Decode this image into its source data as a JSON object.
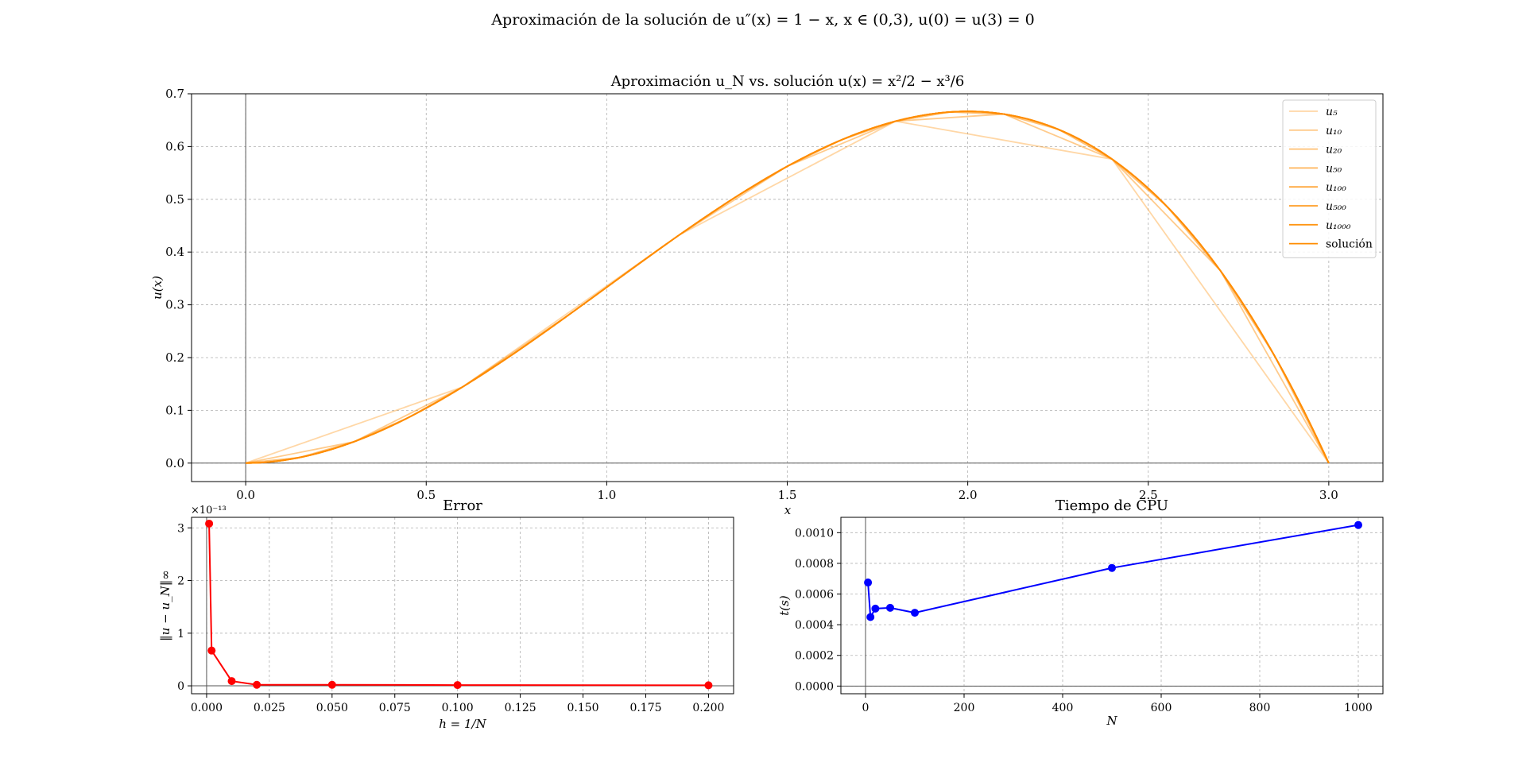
{
  "figure": {
    "suptitle": "Aproximación de la solución de u″(x) = 1 − x, x ∈ (0,3), u(0) = u(3) = 0"
  },
  "chart_data": [
    {
      "type": "line",
      "title": "Aproximación u_N vs. solución u(x) = x²/2 − x³/6",
      "xlabel": "x",
      "ylabel": "u(x)",
      "xlim": [
        -0.15,
        3.15
      ],
      "ylim": [
        -0.035,
        0.7
      ],
      "xticks": [
        "0.0",
        "0.5",
        "1.0",
        "1.5",
        "2.0",
        "2.5",
        "3.0"
      ],
      "yticks": [
        "0.0",
        "0.1",
        "0.2",
        "0.3",
        "0.4",
        "0.5",
        "0.6",
        "0.7"
      ],
      "grid": true,
      "legend_position": "top-right",
      "function": "x^2/2 - x^3/6",
      "series": [
        {
          "name": "u₅",
          "N": 5,
          "color": "#ff8c00",
          "opacity": 0.35
        },
        {
          "name": "u₁₀",
          "N": 10,
          "color": "#ff8c00",
          "opacity": 0.45
        },
        {
          "name": "u₂₀",
          "N": 20,
          "color": "#ff8c00",
          "opacity": 0.55
        },
        {
          "name": "u₅₀",
          "N": 50,
          "color": "#ff8c00",
          "opacity": 0.65
        },
        {
          "name": "u₁₀₀",
          "N": 100,
          "color": "#ff8c00",
          "opacity": 0.75
        },
        {
          "name": "u₅₀₀",
          "N": 500,
          "color": "#ff8c00",
          "opacity": 0.85
        },
        {
          "name": "u₁₀₀₀",
          "N": 1000,
          "color": "#ff8c00",
          "opacity": 0.92
        },
        {
          "name": "solución",
          "N": 0,
          "color": "#ff8c00",
          "opacity": 1.0
        }
      ]
    },
    {
      "type": "line",
      "title": "Error",
      "xlabel": "h = 1/N",
      "ylabel": "‖u − u_N‖∞",
      "scale_label": "×10⁻¹³",
      "xlim": [
        -0.006,
        0.21
      ],
      "ylim": [
        -0.15,
        3.2
      ],
      "xticks": [
        "0.000",
        "0.025",
        "0.050",
        "0.075",
        "0.100",
        "0.125",
        "0.150",
        "0.175",
        "0.200"
      ],
      "yticks": [
        "0",
        "1",
        "2",
        "3"
      ],
      "grid": true,
      "series": [
        {
          "name": "",
          "color": "#ff0000",
          "x": [
            0.001,
            0.002,
            0.01,
            0.02,
            0.05,
            0.1,
            0.2
          ],
          "y": [
            3.08,
            0.67,
            0.09,
            0.02,
            0.02,
            0.015,
            0.01
          ]
        }
      ]
    },
    {
      "type": "line",
      "title": "Tiempo de CPU",
      "xlabel": "N",
      "ylabel": "t(s)",
      "xlim": [
        -50,
        1050
      ],
      "ylim": [
        -5e-05,
        0.0011
      ],
      "xticks": [
        "0",
        "200",
        "400",
        "600",
        "800",
        "1000"
      ],
      "yticks": [
        "0.0000",
        "0.0002",
        "0.0004",
        "0.0006",
        "0.0008",
        "0.0010"
      ],
      "grid": true,
      "series": [
        {
          "name": "",
          "color": "#0000ff",
          "x": [
            5,
            10,
            20,
            50,
            100,
            500,
            1000
          ],
          "y": [
            0.000675,
            0.00045,
            0.000505,
            0.00051,
            0.000478,
            0.00077,
            0.00105
          ]
        }
      ]
    }
  ]
}
